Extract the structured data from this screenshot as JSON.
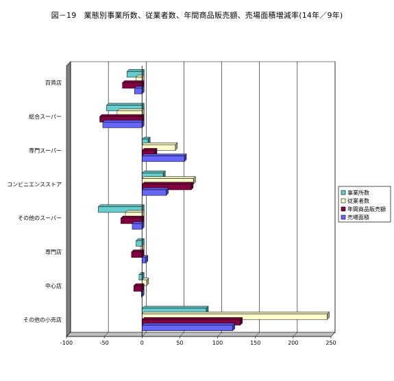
{
  "chart_data": {
    "type": "bar",
    "orientation": "horizontal",
    "title": "図－19　業態別事業所数、従業者数、年間商品販売額、売場面積増減率(14年／9年)",
    "categories": [
      "百貨店",
      "総合スーパー",
      "専門スーパー",
      "コンビニエンスストア",
      "その他のスーパー",
      "専門店",
      "中心店",
      "その他の小売店"
    ],
    "series": [
      {
        "name": "事業所数",
        "color": "#66CCCC",
        "values": [
          -20,
          -47,
          8,
          28,
          -58,
          -8,
          -4,
          85
        ]
      },
      {
        "name": "従業者数",
        "color": "#FFFFCC",
        "values": [
          -8,
          -33,
          44,
          68,
          -22,
          -2,
          6,
          245
        ]
      },
      {
        "name": "年間商品販売額",
        "color": "#800040",
        "values": [
          -26,
          -56,
          17,
          65,
          -28,
          -14,
          -11,
          130
        ]
      },
      {
        "name": "売場面積",
        "color": "#6666FF",
        "values": [
          -10,
          -52,
          56,
          32,
          -13,
          5,
          -1,
          120
        ]
      }
    ],
    "xlim": [
      -100,
      250
    ],
    "xticks": [
      -100,
      -50,
      0,
      50,
      100,
      150,
      200,
      250
    ],
    "grid": true,
    "legend_position": "right"
  }
}
